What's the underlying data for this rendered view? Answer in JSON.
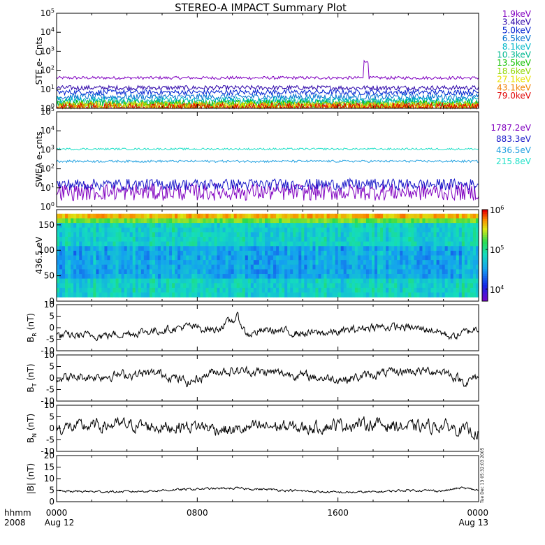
{
  "chart_data": {
    "title": "STEREO-A IMPACT Summary Plot",
    "timestamp_note": "Tue Dec 13 05:32:03 2005",
    "time_axis": {
      "label_line1": "hhmm",
      "label_line2": "2008",
      "ticks": [
        {
          "hours": 0,
          "top": "0000",
          "bottom": "Aug 12"
        },
        {
          "hours": 8,
          "top": "0800",
          "bottom": ""
        },
        {
          "hours": 16,
          "top": "1600",
          "bottom": ""
        },
        {
          "hours": 24,
          "top": "0000",
          "bottom": "Aug 13"
        }
      ],
      "range_hours": [
        0,
        24
      ]
    },
    "panels": [
      {
        "id": "ste",
        "type": "line",
        "ylabel": "STE e- Cnts",
        "yscale": "log",
        "ylim": [
          1,
          100000
        ],
        "ytick_exponents": [
          0,
          1,
          2,
          3,
          4,
          5
        ],
        "series": [
          {
            "name": "1.9keV",
            "color": "#8000c0",
            "level": 40,
            "noise": 0.08,
            "spike": {
              "at_hours": 17.6,
              "value": 350
            }
          },
          {
            "name": "3.4keV",
            "color": "#2a00a8",
            "level": 12,
            "noise": 0.12
          },
          {
            "name": "5.0keV",
            "color": "#0020d0",
            "level": 7,
            "noise": 0.14
          },
          {
            "name": "6.5keV",
            "color": "#0070d0",
            "level": 4,
            "noise": 0.16
          },
          {
            "name": "8.1keV",
            "color": "#00b8c8",
            "level": 2.6,
            "noise": 0.18
          },
          {
            "name": "10.3keV",
            "color": "#00b890",
            "level": 2.0,
            "noise": 0.2
          },
          {
            "name": "13.5keV",
            "color": "#10c000",
            "level": 1.6,
            "noise": 0.22
          },
          {
            "name": "18.6keV",
            "color": "#90d800",
            "level": 1.4,
            "noise": 0.24
          },
          {
            "name": "27.1keV",
            "color": "#e8e000",
            "level": 1.25,
            "noise": 0.25
          },
          {
            "name": "43.1keV",
            "color": "#f08000",
            "level": 1.15,
            "noise": 0.25
          },
          {
            "name": "79.0keV",
            "color": "#e00000",
            "level": 1.1,
            "noise": 0.25
          }
        ]
      },
      {
        "id": "swea",
        "type": "line",
        "ylabel": "SWEA e- cnts",
        "yscale": "log",
        "ylim": [
          1,
          100000
        ],
        "ytick_exponents": [
          0,
          1,
          2,
          3,
          4,
          5
        ],
        "series": [
          {
            "name": "1787.2eV",
            "color": "#8000c0",
            "level": 6,
            "noise": 0.45
          },
          {
            "name": "883.3eV",
            "color": "#1818c8",
            "level": 15,
            "noise": 0.3
          },
          {
            "name": "436.5eV",
            "color": "#20a0e0",
            "level": 250,
            "noise": 0.06
          },
          {
            "name": "215.8eV",
            "color": "#20e0c8",
            "level": 1100,
            "noise": 0.05
          }
        ]
      },
      {
        "id": "pad",
        "type": "heatmap",
        "ylabel": "436.5 eV",
        "ylim": [
          0,
          180
        ],
        "yticks": [
          0,
          50,
          100,
          150
        ],
        "colorbar": {
          "scale": "log",
          "range": [
            5000,
            1000000
          ],
          "tick_exponents": [
            4,
            5,
            6
          ]
        }
      },
      {
        "id": "br",
        "type": "line",
        "ylabel_main": "B",
        "ylabel_sub": "R",
        "ylabel_unit": "(nT)",
        "ylim": [
          -10,
          10
        ],
        "yticks": [
          -10,
          -5,
          0,
          5,
          10
        ],
        "color": "#000000",
        "baseline": [
          [
            0,
            -3.5
          ],
          [
            3,
            -3.2
          ],
          [
            6,
            -1
          ],
          [
            7.5,
            0.5
          ],
          [
            9,
            -1
          ],
          [
            10.3,
            4.5
          ],
          [
            10.8,
            -3
          ],
          [
            12,
            -1
          ],
          [
            14,
            -2.5
          ],
          [
            16,
            -2
          ],
          [
            18,
            0.5
          ],
          [
            20,
            0
          ],
          [
            21.5,
            -1
          ],
          [
            22.5,
            -4
          ],
          [
            24,
            0
          ]
        ],
        "noise": 1.4
      },
      {
        "id": "bt",
        "type": "line",
        "ylabel_main": "B",
        "ylabel_sub": "T",
        "ylabel_unit": "(nT)",
        "ylim": [
          -10,
          10
        ],
        "yticks": [
          -10,
          -5,
          0,
          5,
          10
        ],
        "color": "#000000",
        "baseline": [
          [
            0,
            0
          ],
          [
            2,
            0.5
          ],
          [
            4,
            1.5
          ],
          [
            6,
            2
          ],
          [
            7.5,
            -2
          ],
          [
            9,
            3
          ],
          [
            11,
            3
          ],
          [
            13,
            2
          ],
          [
            15,
            0
          ],
          [
            16.5,
            -0.5
          ],
          [
            18,
            1.5
          ],
          [
            20,
            3
          ],
          [
            22,
            3
          ],
          [
            23.3,
            -2
          ],
          [
            24,
            1
          ]
        ],
        "noise": 1.6
      },
      {
        "id": "bn",
        "type": "line",
        "ylabel_main": "B",
        "ylabel_sub": "N",
        "ylabel_unit": "(nT)",
        "ylim": [
          -10,
          10
        ],
        "yticks": [
          -10,
          -5,
          0,
          5,
          10
        ],
        "color": "#000000",
        "baseline": [
          [
            0,
            0
          ],
          [
            2,
            1
          ],
          [
            4,
            1.5
          ],
          [
            6,
            0.5
          ],
          [
            8,
            1
          ],
          [
            10,
            -1
          ],
          [
            12,
            1
          ],
          [
            14,
            0
          ],
          [
            16,
            1.5
          ],
          [
            18,
            2
          ],
          [
            20,
            0.5
          ],
          [
            22,
            1
          ],
          [
            24,
            -2
          ]
        ],
        "noise": 2.2
      },
      {
        "id": "bmag",
        "type": "line",
        "ylabel": "|B| (nT)",
        "ylim": [
          0,
          20
        ],
        "yticks": [
          0,
          5,
          10,
          15,
          20
        ],
        "color": "#000000",
        "baseline": [
          [
            0,
            4.5
          ],
          [
            4,
            4.3
          ],
          [
            8,
            5.5
          ],
          [
            10,
            5.8
          ],
          [
            12,
            5.3
          ],
          [
            14,
            4.6
          ],
          [
            16,
            4
          ],
          [
            18,
            4.2
          ],
          [
            20,
            5
          ],
          [
            22,
            4.7
          ],
          [
            23,
            6
          ],
          [
            24,
            5
          ]
        ],
        "noise": 0.4
      }
    ]
  }
}
